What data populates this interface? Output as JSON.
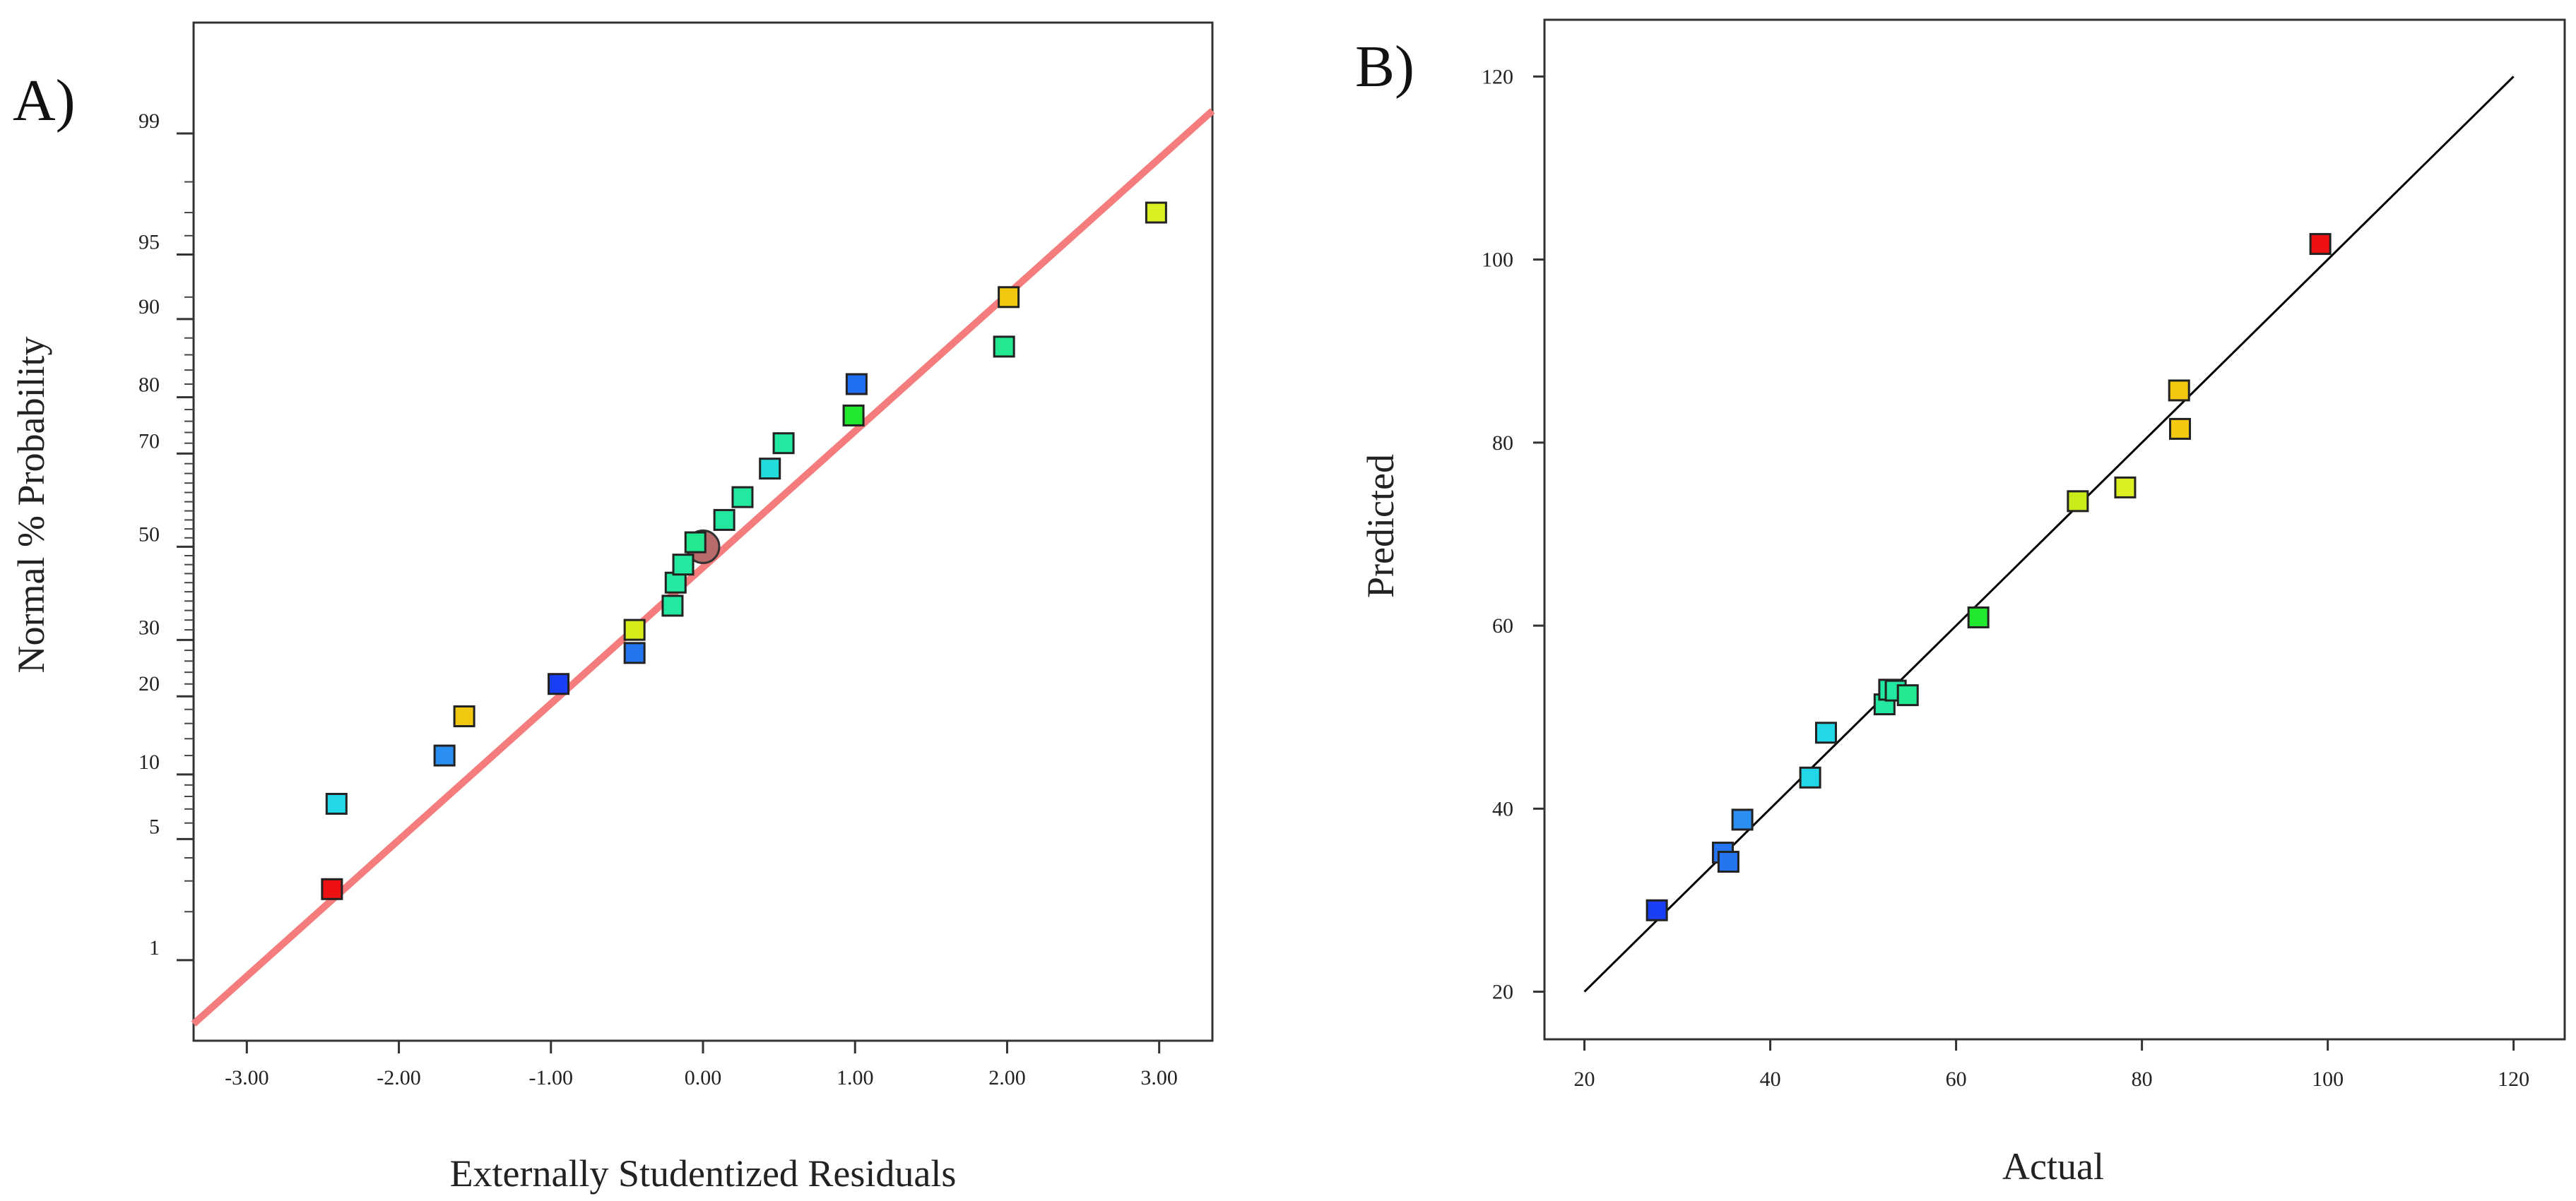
{
  "chart_data": [
    {
      "type": "scatter",
      "panel_label": "A)",
      "subtype": "normal probability plot",
      "xlabel": "Externally Studentized Residuals",
      "ylabel": "Normal % Probability",
      "xlim": [
        -3.35,
        3.35
      ],
      "xticks": [
        -3,
        -2,
        -1,
        0,
        1,
        2,
        3
      ],
      "xtick_labels": [
        "-3.00",
        "-2.00",
        "-1.00",
        "0.00",
        "1.00",
        "2.00",
        "3.00"
      ],
      "yticks_prob": [
        1,
        5,
        10,
        20,
        30,
        50,
        70,
        80,
        90,
        95,
        99
      ],
      "ytick_labels": [
        "1",
        "5",
        "10",
        "20",
        "30",
        "50",
        "70",
        "80",
        "90",
        "95",
        "99"
      ],
      "yminor_prob": [
        2,
        3,
        4,
        6,
        7,
        8,
        9,
        12,
        14,
        16,
        18,
        22,
        24,
        26,
        28,
        32,
        34,
        36,
        38,
        40,
        42,
        44,
        46,
        48,
        52,
        54,
        56,
        58,
        60,
        62,
        64,
        66,
        68,
        72,
        74,
        76,
        78,
        82,
        84,
        86,
        88,
        92,
        96,
        97,
        98
      ],
      "ylim_z": [
        -2.78,
        2.95
      ],
      "reference_line": {
        "intercept_z": -0.116,
        "slope": 0.767,
        "color": "#f47c7c"
      },
      "points": [
        {
          "x": -2.44,
          "p": 2.7,
          "color": "#ee1111"
        },
        {
          "x": -2.41,
          "p": 7.4,
          "color": "#22d8e8"
        },
        {
          "x": -1.7,
          "p": 12.0,
          "color": "#2a8ff0"
        },
        {
          "x": -1.57,
          "p": 17.0,
          "color": "#f0c810"
        },
        {
          "x": -0.95,
          "p": 22.0,
          "color": "#1a3ef5"
        },
        {
          "x": -0.45,
          "p": 27.5,
          "color": "#2575f0"
        },
        {
          "x": -0.45,
          "p": 32.0,
          "color": "#d8ec1a"
        },
        {
          "x": -0.2,
          "p": 37.0,
          "color": "#22e8a0"
        },
        {
          "x": -0.18,
          "p": 42.0,
          "color": "#22e8a0"
        },
        {
          "x": -0.13,
          "p": 46.0,
          "color": "#22e8a0"
        },
        {
          "x": -0.05,
          "p": 51.0,
          "color": "#22e890"
        },
        {
          "x": 0.14,
          "p": 56.0,
          "color": "#22e8a0"
        },
        {
          "x": 0.26,
          "p": 61.0,
          "color": "#22e8a0"
        },
        {
          "x": 0.44,
          "p": 67.0,
          "color": "#22dcdc"
        },
        {
          "x": 0.53,
          "p": 72.0,
          "color": "#22e8a0"
        },
        {
          "x": 0.99,
          "p": 77.0,
          "color": "#22e830"
        },
        {
          "x": 1.01,
          "p": 82.0,
          "color": "#1f6ff0"
        },
        {
          "x": 1.98,
          "p": 87.0,
          "color": "#22e890"
        },
        {
          "x": 2.01,
          "p": 92.0,
          "color": "#f2c910"
        },
        {
          "x": 2.98,
          "p": 97.0,
          "color": "#dcef22"
        }
      ],
      "marker_circle": {
        "x": 0.0,
        "p": 50.0,
        "color": "#b96a6a"
      }
    },
    {
      "type": "scatter",
      "panel_label": "B)",
      "subtype": "predicted vs actual",
      "xlabel": "Actual",
      "ylabel": "Predicted",
      "xlim": [
        15.7,
        125.5
      ],
      "ylim": [
        14.8,
        126.2
      ],
      "xticks": [
        20,
        40,
        60,
        80,
        100,
        120
      ],
      "yticks": [
        20,
        40,
        60,
        80,
        100,
        120
      ],
      "xtick_labels": [
        "20",
        "40",
        "60",
        "80",
        "100",
        "120"
      ],
      "ytick_labels": [
        "20",
        "40",
        "60",
        "80",
        "100",
        "120"
      ],
      "reference_line": {
        "x": [
          20,
          120
        ],
        "y": [
          20,
          120
        ],
        "color": "#000000"
      },
      "points": [
        {
          "actual": 27.8,
          "predicted": 28.9,
          "color": "#1a3ef5"
        },
        {
          "actual": 34.9,
          "predicted": 35.2,
          "color": "#2575f0"
        },
        {
          "actual": 35.5,
          "predicted": 34.2,
          "color": "#2575f0"
        },
        {
          "actual": 37.0,
          "predicted": 38.8,
          "color": "#2a8ff0"
        },
        {
          "actual": 44.3,
          "predicted": 43.4,
          "color": "#22d8e8"
        },
        {
          "actual": 46.0,
          "predicted": 48.3,
          "color": "#22d8e8"
        },
        {
          "actual": 52.3,
          "predicted": 51.4,
          "color": "#22e8a0"
        },
        {
          "actual": 52.8,
          "predicted": 53.0,
          "color": "#22e8a0"
        },
        {
          "actual": 53.5,
          "predicted": 52.9,
          "color": "#22e8a0"
        },
        {
          "actual": 54.8,
          "predicted": 52.4,
          "color": "#22e890"
        },
        {
          "actual": 62.4,
          "predicted": 60.9,
          "color": "#22e830"
        },
        {
          "actual": 73.1,
          "predicted": 73.6,
          "color": "#c8ec1a"
        },
        {
          "actual": 78.2,
          "predicted": 75.1,
          "color": "#dcef22"
        },
        {
          "actual": 84.0,
          "predicted": 85.7,
          "color": "#f2c910"
        },
        {
          "actual": 84.1,
          "predicted": 81.5,
          "color": "#f2c910"
        },
        {
          "actual": 99.2,
          "predicted": 101.7,
          "color": "#ee1111"
        }
      ]
    }
  ]
}
